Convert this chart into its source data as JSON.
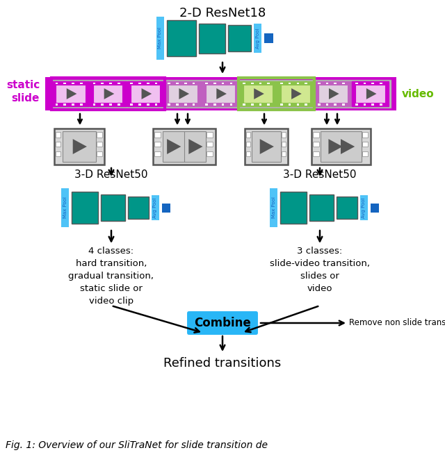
{
  "title_2d": "2-D ResNet18",
  "title_3d_left": "3-D ResNet50",
  "title_3d_right": "3-D ResNet50",
  "static_slide_label": "static\nslide",
  "video_label": "video",
  "combine_label": "Combine",
  "remove_label": "Remove non slide transitions",
  "refined_label": "Refined transitions",
  "classes_left": "4 classes:\nhard transition,\ngradual transition,\nstatic slide or\nvideo clip",
  "classes_right": "3 classes:\nslide-video transition,\nslides or\nvideo",
  "caption": "Fig. 1: Overview of our SliTraNet for slide transition de",
  "color_teal": "#009688",
  "color_blue_light": "#4fc3f7",
  "color_blue_dark": "#1565c0",
  "color_magenta": "#cc00cc",
  "color_green": "#8bc34a",
  "color_gray_fill": "#bdbdbd",
  "color_gray_dark": "#555555",
  "color_gray_med": "#888888",
  "color_combine_bg": "#29b6f6",
  "color_white": "#ffffff",
  "color_black": "#000000"
}
